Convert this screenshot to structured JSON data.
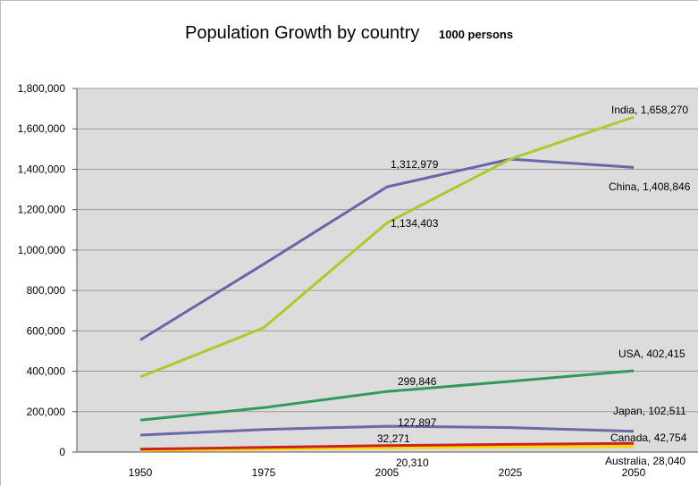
{
  "chart_data": {
    "type": "line",
    "title": "Population Growth by country",
    "subtitle": "1000 persons",
    "xlabel": "",
    "ylabel": "",
    "x": [
      "1950",
      "1975",
      "2005",
      "2025",
      "2050"
    ],
    "ylim": [
      0,
      1800000
    ],
    "yticks": [
      "0",
      "200,000",
      "400,000",
      "600,000",
      "800,000",
      "1,000,000",
      "1,200,000",
      "1,400,000",
      "1,600,000",
      "1,800,000"
    ],
    "grid": true,
    "legend": "none",
    "series": [
      {
        "name": "China",
        "color": "#6666a8",
        "values": [
          555000,
          930000,
          1312979,
          1450000,
          1408846
        ]
      },
      {
        "name": "India",
        "color": "#a8cc2a",
        "values": [
          372000,
          615000,
          1134403,
          1450000,
          1658270
        ]
      },
      {
        "name": "USA",
        "color": "#2e9a5e",
        "values": [
          158000,
          220000,
          299846,
          350000,
          402415
        ]
      },
      {
        "name": "Japan",
        "color": "#6a6aa8",
        "values": [
          84000,
          112000,
          127897,
          121000,
          102511
        ]
      },
      {
        "name": "Canada",
        "color": "#cc2222",
        "values": [
          14000,
          23000,
          32271,
          38000,
          42754
        ]
      },
      {
        "name": "Australia",
        "color": "#ffd500",
        "values": [
          8000,
          14000,
          20310,
          25000,
          28040
        ]
      }
    ],
    "data_labels": [
      {
        "series": "China",
        "x": "2005",
        "text": "1,312,979"
      },
      {
        "series": "India",
        "x": "2005",
        "text": "1,134,403"
      },
      {
        "series": "India",
        "x": "2050",
        "text": "India, 1,658,270"
      },
      {
        "series": "China",
        "x": "2050",
        "text": "China, 1,408,846"
      },
      {
        "series": "USA",
        "x": "2005",
        "text": "299,846"
      },
      {
        "series": "USA",
        "x": "2050",
        "text": "USA, 402,415"
      },
      {
        "series": "Japan",
        "x": "2005",
        "text": "127,897"
      },
      {
        "series": "Japan",
        "x": "2050",
        "text": "Japan, 102,511"
      },
      {
        "series": "Canada",
        "x": "2005",
        "text": "32,271"
      },
      {
        "series": "Canada",
        "x": "2050",
        "text": "Canada, 42,754"
      },
      {
        "series": "Australia",
        "x": "2005",
        "text": "20,310"
      },
      {
        "series": "Australia",
        "x": "2050",
        "text": "Australia, 28,040"
      }
    ],
    "plot_background": "#dcdcdc"
  }
}
